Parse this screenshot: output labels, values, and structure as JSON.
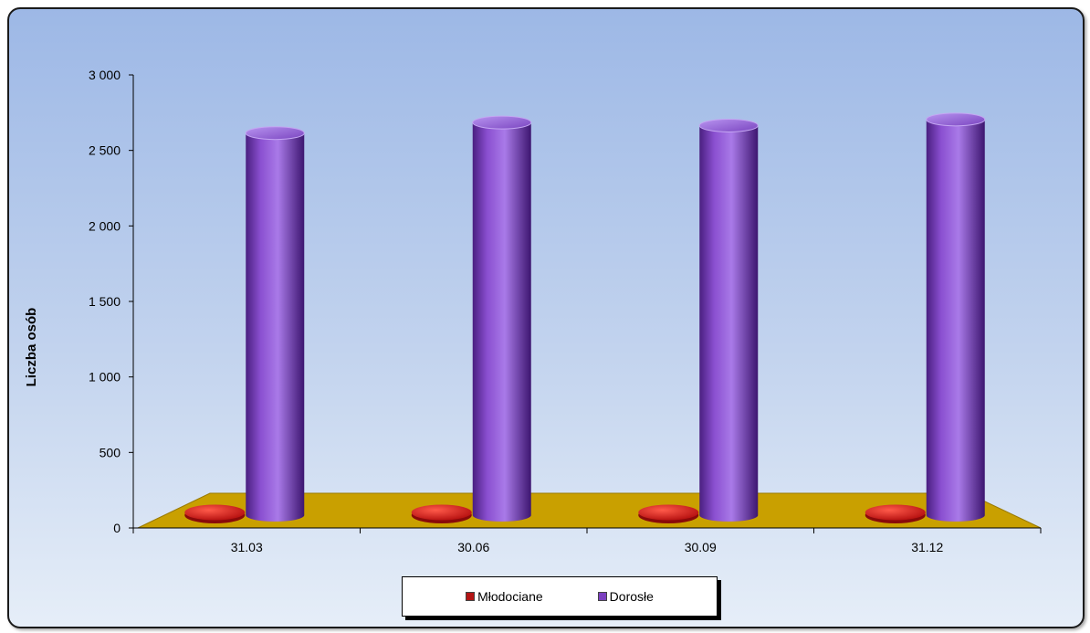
{
  "chart_data": {
    "type": "bar",
    "title": "",
    "ylabel": "Liczba osób",
    "xlabel": "",
    "categories": [
      "31.03",
      "30.06",
      "30.09",
      "31.12"
    ],
    "ylim": [
      0,
      3000
    ],
    "yticks": [
      0,
      500,
      1000,
      1500,
      2000,
      2500,
      3000
    ],
    "ytick_labels": [
      "0",
      "500",
      "1 000",
      "1 500",
      "2 000",
      "2 500",
      "3 000"
    ],
    "grid": false,
    "legend_position": "bottom",
    "series": [
      {
        "name": "Młodociane",
        "values": [
          40,
          40,
          40,
          40
        ],
        "color": "#cc1a1a"
      },
      {
        "name": "Dorosłe",
        "values": [
          2530,
          2600,
          2580,
          2620
        ],
        "color": "#7b3fbf"
      }
    ],
    "floor_color": "#c9a000"
  }
}
